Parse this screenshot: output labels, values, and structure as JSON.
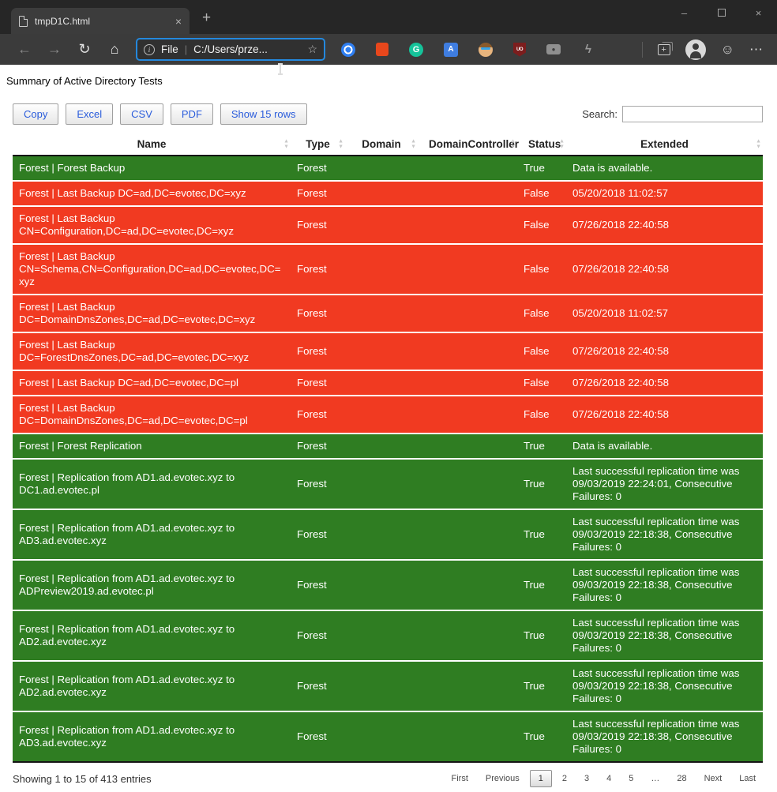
{
  "window": {
    "tab_title": "tmpD1C.html",
    "tab_close": "×",
    "new_tab": "+",
    "controls": {
      "minimize": "–",
      "close": "×"
    }
  },
  "browser": {
    "nav": {
      "back": "←",
      "forward": "→",
      "refresh": "↻",
      "home": "⌂"
    },
    "address": {
      "info_glyph": "i",
      "scheme_label": "File",
      "divider": "|",
      "url": "C:/Users/prze...",
      "star": "☆"
    },
    "extensions": {
      "grammarly_glyph": "G",
      "translate_glyph": "A",
      "ublock_glyph": "UO",
      "camera_glyph": "●",
      "lightning_glyph": "ϟ",
      "collections_glyph": "+",
      "smiley_glyph": "☺",
      "more_glyph": "⋯"
    }
  },
  "page": {
    "title": "Summary of Active Directory Tests",
    "buttons": [
      "Copy",
      "Excel",
      "CSV",
      "PDF",
      "Show 15 rows"
    ],
    "search_label": "Search:",
    "search_value": "",
    "colors": {
      "accent": "#2a5cdb",
      "ok": "#2f7d22",
      "fail": "#f13a21"
    },
    "table": {
      "headers": [
        "Name",
        "Type",
        "Domain",
        "DomainController",
        "Status",
        "Extended"
      ],
      "sort_icons": {
        "asc": "▲",
        "desc": "▼"
      },
      "rows": [
        {
          "name": "Forest | Forest Backup",
          "type": "Forest",
          "domain": "",
          "controller": "",
          "status": "True",
          "extended": "Data is available."
        },
        {
          "name": "Forest | Last Backup DC=ad,DC=evotec,DC=xyz",
          "type": "Forest",
          "domain": "",
          "controller": "",
          "status": "False",
          "extended": "05/20/2018 11:02:57"
        },
        {
          "name": "Forest | Last Backup CN=Configuration,DC=ad,DC=evotec,DC=xyz",
          "type": "Forest",
          "domain": "",
          "controller": "",
          "status": "False",
          "extended": "07/26/2018 22:40:58"
        },
        {
          "name": "Forest | Last Backup CN=Schema,CN=Configuration,DC=ad,DC=evotec,DC=xyz",
          "type": "Forest",
          "domain": "",
          "controller": "",
          "status": "False",
          "extended": "07/26/2018 22:40:58"
        },
        {
          "name": "Forest | Last Backup DC=DomainDnsZones,DC=ad,DC=evotec,DC=xyz",
          "type": "Forest",
          "domain": "",
          "controller": "",
          "status": "False",
          "extended": "05/20/2018 11:02:57"
        },
        {
          "name": "Forest | Last Backup DC=ForestDnsZones,DC=ad,DC=evotec,DC=xyz",
          "type": "Forest",
          "domain": "",
          "controller": "",
          "status": "False",
          "extended": "07/26/2018 22:40:58"
        },
        {
          "name": "Forest | Last Backup DC=ad,DC=evotec,DC=pl",
          "type": "Forest",
          "domain": "",
          "controller": "",
          "status": "False",
          "extended": "07/26/2018 22:40:58"
        },
        {
          "name": "Forest | Last Backup DC=DomainDnsZones,DC=ad,DC=evotec,DC=pl",
          "type": "Forest",
          "domain": "",
          "controller": "",
          "status": "False",
          "extended": "07/26/2018 22:40:58"
        },
        {
          "name": "Forest | Forest Replication",
          "type": "Forest",
          "domain": "",
          "controller": "",
          "status": "True",
          "extended": "Data is available."
        },
        {
          "name": "Forest | Replication from AD1.ad.evotec.xyz to DC1.ad.evotec.pl",
          "type": "Forest",
          "domain": "",
          "controller": "",
          "status": "True",
          "extended": "Last successful replication time was 09/03/2019 22:24:01, Consecutive Failures: 0"
        },
        {
          "name": "Forest | Replication from AD1.ad.evotec.xyz to AD3.ad.evotec.xyz",
          "type": "Forest",
          "domain": "",
          "controller": "",
          "status": "True",
          "extended": "Last successful replication time was 09/03/2019 22:18:38, Consecutive Failures: 0"
        },
        {
          "name": "Forest | Replication from AD1.ad.evotec.xyz to ADPreview2019.ad.evotec.pl",
          "type": "Forest",
          "domain": "",
          "controller": "",
          "status": "True",
          "extended": "Last successful replication time was 09/03/2019 22:18:38, Consecutive Failures: 0"
        },
        {
          "name": "Forest | Replication from AD1.ad.evotec.xyz to AD2.ad.evotec.xyz",
          "type": "Forest",
          "domain": "",
          "controller": "",
          "status": "True",
          "extended": "Last successful replication time was 09/03/2019 22:18:38, Consecutive Failures: 0"
        },
        {
          "name": "Forest | Replication from AD1.ad.evotec.xyz to AD2.ad.evotec.xyz",
          "type": "Forest",
          "domain": "",
          "controller": "",
          "status": "True",
          "extended": "Last successful replication time was 09/03/2019 22:18:38, Consecutive Failures: 0"
        },
        {
          "name": "Forest | Replication from AD1.ad.evotec.xyz to AD3.ad.evotec.xyz",
          "type": "Forest",
          "domain": "",
          "controller": "",
          "status": "True",
          "extended": "Last successful replication time was 09/03/2019 22:18:38, Consecutive Failures: 0"
        }
      ]
    },
    "footer": {
      "info": "Showing 1 to 15 of 413 entries",
      "pagination": [
        "First",
        "Previous",
        "1",
        "2",
        "3",
        "4",
        "5",
        "…",
        "28",
        "Next",
        "Last"
      ],
      "current_page": "1"
    }
  }
}
